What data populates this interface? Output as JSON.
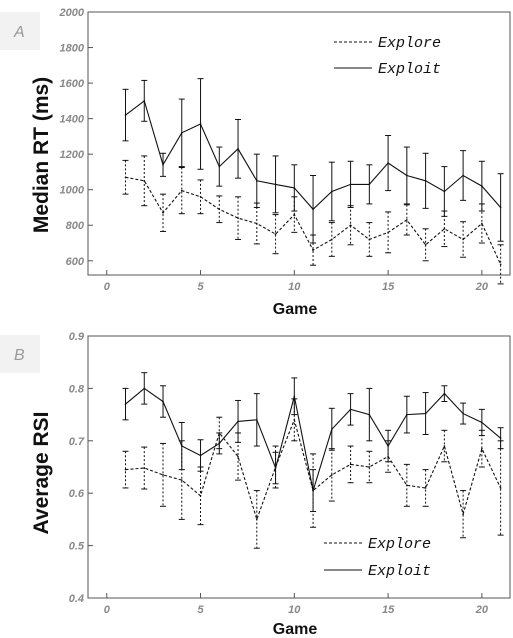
{
  "chart_data": [
    {
      "type": "line",
      "panel_label": "A",
      "xlabel": "Game",
      "ylabel": "Median RT (ms)",
      "xlim": [
        -1,
        21.5
      ],
      "ylim": [
        520,
        2000
      ],
      "xticks": [
        0,
        5,
        10,
        15,
        20
      ],
      "yticks": [
        600,
        800,
        1000,
        1200,
        1400,
        1600,
        1800,
        2000
      ],
      "grid": false,
      "legend_position": "top-right",
      "x": [
        1,
        2,
        3,
        4,
        5,
        6,
        7,
        8,
        9,
        10,
        11,
        12,
        13,
        14,
        15,
        16,
        17,
        18,
        19,
        20,
        21
      ],
      "series": [
        {
          "name": "Explore",
          "style": "dashed",
          "values": [
            1070,
            1050,
            870,
            995,
            960,
            890,
            840,
            810,
            750,
            860,
            660,
            720,
            800,
            720,
            760,
            830,
            690,
            780,
            720,
            810,
            580
          ],
          "errors": [
            95,
            140,
            105,
            130,
            95,
            75,
            120,
            115,
            110,
            100,
            85,
            95,
            110,
            95,
            115,
            85,
            90,
            100,
            100,
            110,
            110
          ]
        },
        {
          "name": "Exploit",
          "style": "solid",
          "values": [
            1420,
            1500,
            1140,
            1320,
            1370,
            1130,
            1230,
            1050,
            1030,
            1010,
            890,
            990,
            1030,
            1030,
            1150,
            1080,
            1050,
            990,
            1080,
            1020,
            900
          ],
          "errors": [
            145,
            115,
            65,
            190,
            255,
            110,
            165,
            150,
            160,
            130,
            190,
            165,
            130,
            110,
            155,
            160,
            155,
            140,
            140,
            140,
            190
          ]
        }
      ]
    },
    {
      "type": "line",
      "panel_label": "B",
      "xlabel": "Game",
      "ylabel": "Average RSI",
      "xlim": [
        -1,
        21.5
      ],
      "ylim": [
        0.4,
        0.9
      ],
      "xticks": [
        0,
        5,
        10,
        15,
        20
      ],
      "yticks": [
        0.4,
        0.5,
        0.6,
        0.7,
        0.8,
        0.9
      ],
      "grid": false,
      "legend_position": "bottom-right",
      "x": [
        1,
        2,
        3,
        4,
        5,
        6,
        7,
        8,
        9,
        10,
        11,
        12,
        13,
        14,
        15,
        16,
        17,
        18,
        19,
        20,
        21
      ],
      "series": [
        {
          "name": "Explore",
          "style": "dashed",
          "values": [
            0.645,
            0.648,
            0.635,
            0.625,
            0.595,
            0.715,
            0.67,
            0.55,
            0.65,
            0.74,
            0.605,
            0.635,
            0.655,
            0.65,
            0.67,
            0.615,
            0.61,
            0.69,
            0.56,
            0.685,
            0.61
          ],
          "errors": [
            0.035,
            0.04,
            0.06,
            0.075,
            0.055,
            0.03,
            0.045,
            0.055,
            0.04,
            0.04,
            0.07,
            0.05,
            0.035,
            0.03,
            0.03,
            0.04,
            0.035,
            0.03,
            0.045,
            0.035,
            0.09
          ]
        },
        {
          "name": "Exploit",
          "style": "solid",
          "values": [
            0.77,
            0.8,
            0.775,
            0.69,
            0.672,
            0.695,
            0.737,
            0.74,
            0.648,
            0.785,
            0.605,
            0.722,
            0.76,
            0.75,
            0.69,
            0.75,
            0.752,
            0.79,
            0.752,
            0.735,
            0.705
          ],
          "errors": [
            0.03,
            0.03,
            0.03,
            0.045,
            0.03,
            0.02,
            0.04,
            0.05,
            0.03,
            0.035,
            0.04,
            0.04,
            0.03,
            0.05,
            0.03,
            0.035,
            0.04,
            0.015,
            0.02,
            0.025,
            0.02
          ]
        }
      ]
    }
  ]
}
